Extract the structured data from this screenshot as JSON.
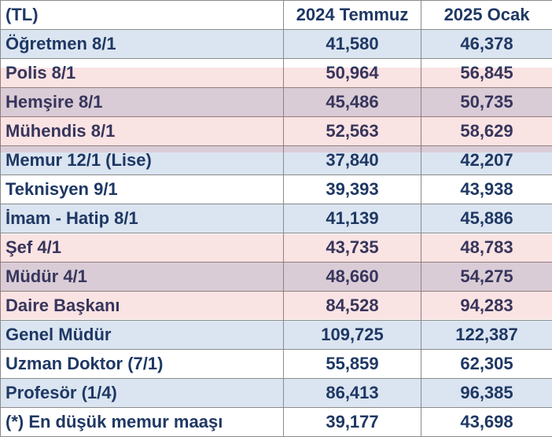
{
  "table": {
    "headers": [
      "(TL)",
      "2024 Temmuz",
      "2025 Ocak"
    ],
    "rows": [
      [
        "Öğretmen 8/1",
        "41,580",
        "46,378"
      ],
      [
        "Polis 8/1",
        "50,964",
        "56,845"
      ],
      [
        "Hemşire 8/1",
        "45,486",
        "50,735"
      ],
      [
        "Mühendis 8/1",
        "52,563",
        "58,629"
      ],
      [
        "Memur 12/1 (Lise)",
        "37,840",
        "42,207"
      ],
      [
        "Teknisyen 9/1",
        "39,393",
        "43,938"
      ],
      [
        "İmam - Hatip 8/1",
        "41,139",
        "45,886"
      ],
      [
        "Şef 4/1",
        "43,735",
        "48,783"
      ],
      [
        "Müdür 4/1",
        "48,660",
        "54,275"
      ],
      [
        "Daire Başkanı",
        "84,528",
        "94,283"
      ],
      [
        "Genel Müdür",
        "109,725",
        "122,387"
      ],
      [
        "Uzman Doktor (7/1)",
        "55,859",
        "62,305"
      ],
      [
        "Profesör (1/4)",
        "86,413",
        "96,385"
      ],
      [
        "(*) En düşük memur maaşı",
        "39,177",
        "43,698"
      ]
    ]
  },
  "colors": {
    "text": "#1f3864",
    "row_alt": "#dbe5f1",
    "row_plain": "#ffffff",
    "border": "#8a8a8a"
  }
}
